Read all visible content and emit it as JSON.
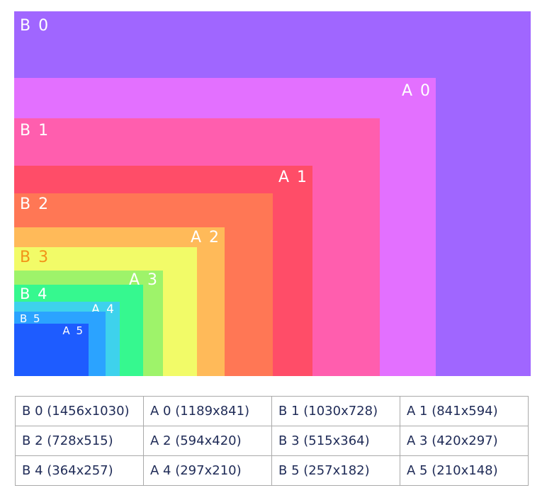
{
  "diagram": {
    "max_size": [
      1456,
      1030
    ],
    "papers": [
      {
        "label": "B 0",
        "name": "B0",
        "width": 1456,
        "height": 1030,
        "color": "#a066ff",
        "label_color": "#ffffff"
      },
      {
        "label": "A 0",
        "name": "A0",
        "width": 1189,
        "height": 841,
        "color": "#e370ff",
        "label_color": "#ffffff"
      },
      {
        "label": "B 1",
        "name": "B1",
        "width": 1030,
        "height": 728,
        "color": "#ff5eae",
        "label_color": "#ffffff"
      },
      {
        "label": "A 1",
        "name": "A1",
        "width": 841,
        "height": 594,
        "color": "#ff4d68",
        "label_color": "#ffffff"
      },
      {
        "label": "B 2",
        "name": "B2",
        "width": 728,
        "height": 515,
        "color": "#ff7755",
        "label_color": "#ffffff"
      },
      {
        "label": "A 2",
        "name": "A2",
        "width": 594,
        "height": 420,
        "color": "#ffba59",
        "label_color": "#ffffff"
      },
      {
        "label": "B 3",
        "name": "B3",
        "width": 515,
        "height": 364,
        "color": "#f2fb68",
        "label_color": "#f29318"
      },
      {
        "label": "A 3",
        "name": "A3",
        "width": 420,
        "height": 297,
        "color": "#9ef36a",
        "label_color": "#ffffff"
      },
      {
        "label": "B 4",
        "name": "B4",
        "width": 364,
        "height": 257,
        "color": "#36f88f",
        "label_color": "#ffffff"
      },
      {
        "label": "A 4",
        "name": "A4",
        "width": 297,
        "height": 210,
        "color": "#3ed2ec",
        "label_color": "#ffffff"
      },
      {
        "label": "B 5",
        "name": "B5",
        "width": 257,
        "height": 182,
        "color": "#2ba3ff",
        "label_color": "#ffffff"
      },
      {
        "label": "A 5",
        "name": "A5",
        "width": 210,
        "height": 148,
        "color": "#1e5cff",
        "label_color": "#ffffff"
      }
    ]
  },
  "table": {
    "rows": [
      [
        "B 0 (1456x1030)",
        "A 0 (1189x841)",
        "B 1 (1030x728)",
        "A 1 (841x594)"
      ],
      [
        "B 2 (728x515)",
        "A 2 (594x420)",
        "B 3 (515x364)",
        "A 3 (420x297)"
      ],
      [
        "B 4 (364x257)",
        "A 4 (297x210)",
        "B 5 (257x182)",
        "A 5 (210x148)"
      ]
    ]
  }
}
